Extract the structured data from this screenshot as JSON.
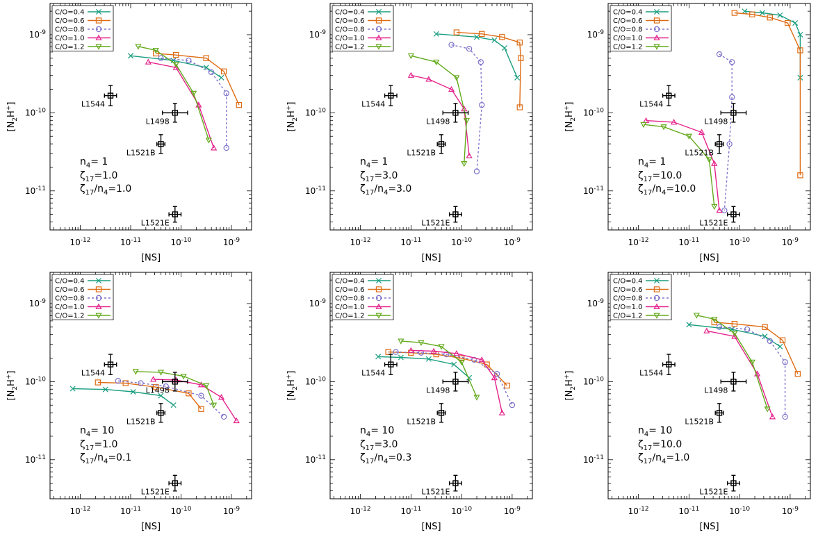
{
  "chart_data": {
    "type": "scatter",
    "axes": {
      "x": {
        "scale": "log",
        "lim_log10": [
          -12.6,
          -8.6
        ],
        "ticks_log10": [
          -12,
          -11,
          -10,
          -9
        ],
        "label": "[NS]"
      },
      "y": {
        "scale": "log",
        "lim_log10": [
          -11.5,
          -8.6
        ],
        "ticks_log10": [
          -11,
          -10,
          -9
        ],
        "label": "[N2H+]"
      }
    },
    "series_style": [
      {
        "name": "C/O=0.4",
        "color": "#1a9e7f",
        "marker": "x",
        "dash": ""
      },
      {
        "name": "C/O=0.6",
        "color": "#de6b12",
        "marker": "square",
        "dash": ""
      },
      {
        "name": "C/O=0.8",
        "color": "#7d72c9",
        "marker": "circle",
        "dash": "3,3"
      },
      {
        "name": "C/O=1.0",
        "color": "#e5238c",
        "marker": "triangle-up",
        "dash": ""
      },
      {
        "name": "C/O=1.2",
        "color": "#63aa1c",
        "marker": "triangle-down",
        "dash": ""
      }
    ],
    "observations": [
      {
        "name": "L1544",
        "x_log10": -11.4,
        "xerr_log10": 0.12,
        "y_log10": -9.78,
        "yerr_log10": 0.13
      },
      {
        "name": "L1498",
        "x_log10": -10.12,
        "xerr_log10": 0.25,
        "y_log10": -10.0,
        "yerr_log10": 0.12
      },
      {
        "name": "L1521B",
        "x_log10": -10.4,
        "xerr_log10": 0.08,
        "y_log10": -10.4,
        "yerr_log10": 0.12
      },
      {
        "name": "L1521E",
        "x_log10": -10.12,
        "xerr_log10": 0.12,
        "y_log10": -11.3,
        "yerr_log10": 0.1
      }
    ],
    "panels": [
      {
        "id": "n4-1-zeta-1",
        "params": [
          "n",
          "4",
          "= 1",
          "ζ",
          "17",
          "=1.0",
          "ζ",
          "17",
          "/n",
          "4",
          "=1.0"
        ],
        "series": [
          {
            "name": "C/O=0.4",
            "x": [
              -11.0,
              -10.15,
              -9.5,
              -9.2
            ],
            "y": [
              -9.27,
              -9.33,
              -9.42,
              -9.55
            ]
          },
          {
            "name": "C/O=0.6",
            "x": [
              -10.5,
              -10.1,
              -9.5,
              -9.15,
              -8.85
            ],
            "y": [
              -9.24,
              -9.26,
              -9.3,
              -9.47,
              -9.9
            ]
          },
          {
            "name": "C/O=0.8",
            "x": [
              -10.4,
              -9.85,
              -9.4,
              -9.1,
              -9.1
            ],
            "y": [
              -9.3,
              -9.33,
              -9.48,
              -9.75,
              -10.45
            ]
          },
          {
            "name": "C/O=1.0",
            "x": [
              -10.65,
              -10.1,
              -9.65,
              -9.35
            ],
            "y": [
              -9.35,
              -9.42,
              -9.9,
              -10.45
            ]
          },
          {
            "name": "C/O=1.2",
            "x": [
              -10.85,
              -10.5,
              -10.1,
              -9.75,
              -9.45
            ],
            "y": [
              -9.15,
              -9.2,
              -9.38,
              -9.75,
              -10.35
            ]
          }
        ]
      },
      {
        "id": "n4-1-zeta-3",
        "params": [
          "n",
          "4",
          "= 1",
          "ζ",
          "17",
          "=3.0",
          "ζ",
          "17",
          "/n",
          "4",
          "=3.0"
        ],
        "series": [
          {
            "name": "C/O=0.4",
            "x": [
              -10.5,
              -9.7,
              -9.35,
              -9.15,
              -8.9
            ],
            "y": [
              -8.99,
              -9.03,
              -9.07,
              -9.17,
              -9.55
            ]
          },
          {
            "name": "C/O=0.6",
            "x": [
              -10.1,
              -9.6,
              -9.2,
              -8.85,
              -8.83,
              -8.85
            ],
            "y": [
              -8.97,
              -8.99,
              -9.03,
              -9.1,
              -9.3,
              -9.93
            ]
          },
          {
            "name": "C/O=0.8",
            "x": [
              -10.2,
              -9.85,
              -9.62,
              -9.6,
              -9.7
            ],
            "y": [
              -9.13,
              -9.18,
              -9.35,
              -9.9,
              -10.75
            ]
          },
          {
            "name": "C/O=1.0",
            "x": [
              -11.0,
              -10.65,
              -10.2,
              -9.95,
              -9.85
            ],
            "y": [
              -9.52,
              -9.57,
              -9.7,
              -9.95,
              -10.55
            ]
          },
          {
            "name": "C/O=1.2",
            "x": [
              -11.0,
              -10.5,
              -10.1,
              -9.9,
              -9.95
            ],
            "y": [
              -9.27,
              -9.35,
              -9.55,
              -10.1,
              -10.65
            ]
          }
        ]
      },
      {
        "id": "n4-1-zeta-10",
        "params": [
          "n",
          "4",
          "= 1",
          "ζ",
          "17",
          "=10.0",
          "ζ",
          "17",
          "/n",
          "4",
          "=10.0"
        ],
        "series": [
          {
            "name": "C/O=0.4",
            "x": [
              -9.9,
              -9.55,
              -9.2,
              -8.9,
              -8.8,
              -8.8
            ],
            "y": [
              -8.7,
              -8.72,
              -8.75,
              -8.85,
              -9.0,
              -9.55
            ]
          },
          {
            "name": "C/O=0.6",
            "x": [
              -10.1,
              -9.75,
              -9.4,
              -9.05,
              -8.8,
              -8.8
            ],
            "y": [
              -8.72,
              -8.74,
              -8.78,
              -8.85,
              -9.2,
              -10.8
            ]
          },
          {
            "name": "C/O=0.8",
            "x": [
              -10.4,
              -10.15,
              -10.15,
              -10.2,
              -10.3
            ],
            "y": [
              -9.25,
              -9.35,
              -9.8,
              -10.4,
              -11.25
            ]
          },
          {
            "name": "C/O=1.0",
            "x": [
              -11.85,
              -11.3,
              -10.75,
              -10.5,
              -10.4
            ],
            "y": [
              -10.1,
              -10.12,
              -10.25,
              -10.65,
              -11.25
            ]
          },
          {
            "name": "C/O=1.2",
            "x": [
              -11.9,
              -11.5,
              -11.0,
              -10.6,
              -10.5
            ],
            "y": [
              -10.15,
              -10.18,
              -10.3,
              -10.6,
              -11.2
            ]
          }
        ]
      },
      {
        "id": "n4-10-zeta-1",
        "params": [
          "n",
          "4",
          "= 10",
          "ζ",
          "17",
          "=1.0",
          "ζ",
          "17",
          "/n",
          "4",
          "=0.1"
        ],
        "series": [
          {
            "name": "C/O=0.4",
            "x": [
              -12.15,
              -11.5,
              -10.95,
              -10.4,
              -10.15
            ],
            "y": [
              -10.09,
              -10.1,
              -10.13,
              -10.18,
              -10.3
            ]
          },
          {
            "name": "C/O=0.6",
            "x": [
              -11.65,
              -11.1,
              -10.5,
              -9.85,
              -9.6
            ],
            "y": [
              -10.01,
              -10.02,
              -10.07,
              -10.15,
              -10.35
            ]
          },
          {
            "name": "C/O=0.8",
            "x": [
              -11.25,
              -10.8,
              -10.3,
              -9.6,
              -9.15
            ],
            "y": [
              -9.99,
              -10.02,
              -10.06,
              -10.18,
              -10.45
            ]
          },
          {
            "name": "C/O=1.0",
            "x": [
              -10.55,
              -10.1,
              -9.6,
              -9.2,
              -8.9
            ],
            "y": [
              -9.97,
              -9.98,
              -10.04,
              -10.2,
              -10.5
            ]
          },
          {
            "name": "C/O=1.2",
            "x": [
              -10.9,
              -10.4,
              -9.95,
              -9.5,
              -9.35
            ],
            "y": [
              -9.87,
              -9.88,
              -9.93,
              -10.05,
              -10.3
            ]
          }
        ]
      },
      {
        "id": "n4-10-zeta-3",
        "params": [
          "n",
          "4",
          "= 10",
          "ζ",
          "17",
          "=3.0",
          "ζ",
          "17",
          "/n",
          "4",
          "=0.3"
        ],
        "series": [
          {
            "name": "C/O=0.4",
            "x": [
              -11.65,
              -11.2,
              -10.65,
              -10.15,
              -9.85
            ],
            "y": [
              -9.68,
              -9.69,
              -9.71,
              -9.78,
              -9.95
            ]
          },
          {
            "name": "C/O=0.6",
            "x": [
              -11.45,
              -11.0,
              -10.5,
              -10.0,
              -9.5,
              -9.1
            ],
            "y": [
              -9.62,
              -9.63,
              -9.65,
              -9.7,
              -9.78,
              -10.05
            ]
          },
          {
            "name": "C/O=0.8",
            "x": [
              -11.3,
              -10.8,
              -10.3,
              -9.75,
              -9.3,
              -9.0
            ],
            "y": [
              -9.62,
              -9.63,
              -9.65,
              -9.72,
              -9.9,
              -10.3
            ]
          },
          {
            "name": "C/O=1.0",
            "x": [
              -11.0,
              -10.55,
              -10.1,
              -9.6,
              -9.35,
              -9.2
            ],
            "y": [
              -9.6,
              -9.61,
              -9.64,
              -9.72,
              -9.95,
              -10.4
            ]
          },
          {
            "name": "C/O=1.2",
            "x": [
              -11.2,
              -10.8,
              -10.4,
              -10.0,
              -9.7
            ],
            "y": [
              -9.48,
              -9.5,
              -9.55,
              -9.75,
              -10.2
            ]
          }
        ]
      },
      {
        "id": "n4-10-zeta-10",
        "params": [
          "n",
          "4",
          "= 10",
          "ζ",
          "17",
          "=10.0",
          "ζ",
          "17",
          "/n",
          "4",
          "=1.0"
        ],
        "series": [
          {
            "name": "C/O=0.4",
            "x": [
              -11.0,
              -10.15,
              -9.5,
              -9.2
            ],
            "y": [
              -9.27,
              -9.33,
              -9.42,
              -9.55
            ]
          },
          {
            "name": "C/O=0.6",
            "x": [
              -10.5,
              -10.1,
              -9.5,
              -9.15,
              -8.85
            ],
            "y": [
              -9.24,
              -9.26,
              -9.3,
              -9.47,
              -9.9
            ]
          },
          {
            "name": "C/O=0.8",
            "x": [
              -10.4,
              -9.85,
              -9.4,
              -9.1,
              -9.1
            ],
            "y": [
              -9.3,
              -9.33,
              -9.48,
              -9.75,
              -10.45
            ]
          },
          {
            "name": "C/O=1.0",
            "x": [
              -10.65,
              -10.1,
              -9.65,
              -9.35
            ],
            "y": [
              -9.35,
              -9.42,
              -9.9,
              -10.45
            ]
          },
          {
            "name": "C/O=1.2",
            "x": [
              -10.85,
              -10.5,
              -10.1,
              -9.75,
              -9.45
            ],
            "y": [
              -9.15,
              -9.2,
              -9.38,
              -9.75,
              -10.35
            ]
          }
        ]
      }
    ]
  }
}
